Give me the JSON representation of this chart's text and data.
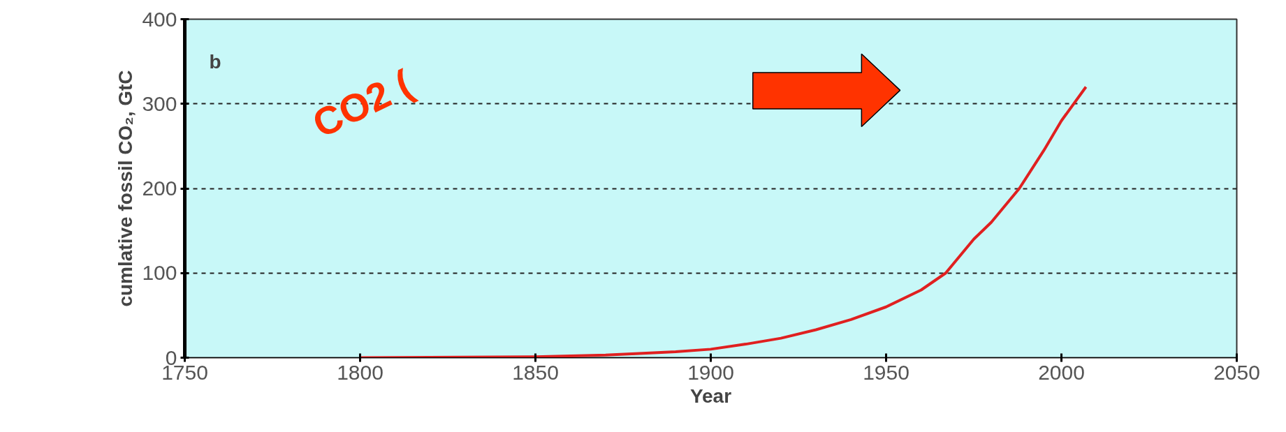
{
  "chart_data": {
    "type": "line",
    "xlabel": "Year",
    "ylabel": "cumlative fossil CO₂, GtC",
    "annotations": [
      "b",
      "CO2 ("
    ],
    "series": [
      {
        "color": "#e02020",
        "x": [
          1800,
          1850,
          1870,
          1890,
          1900,
          1910,
          1920,
          1930,
          1940,
          1950,
          1960,
          1967,
          1975,
          1980,
          1988,
          1995,
          2000,
          2007
        ],
        "values": [
          0,
          1,
          3,
          7,
          10,
          16,
          23,
          33,
          45,
          60,
          80,
          100,
          140,
          160,
          200,
          245,
          280,
          320
        ]
      }
    ],
    "xlim": [
      1750,
      2050
    ],
    "ylim": [
      0,
      400
    ],
    "xticks": [
      1750,
      1800,
      1850,
      1900,
      1950,
      2000,
      2050
    ],
    "yticks": [
      0,
      100,
      200,
      300,
      400
    ],
    "grid": "y",
    "line_style": "solid",
    "marker": "none"
  }
}
